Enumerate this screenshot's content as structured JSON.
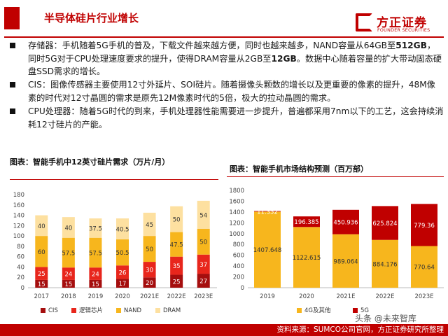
{
  "header": {
    "title": "半导体硅片行业增长",
    "logo_cn": "方正证券",
    "logo_en": "FOUNDER SECURITIES"
  },
  "bullets": [
    {
      "parts": [
        {
          "t": "存储器：手机随着5G手机的普及，下载文件越来越方便，同时也越来越多，NAND容量从64GB至"
        },
        {
          "t": "512GB",
          "b": true
        },
        {
          "t": "，同时5G对于CPU处理速度要求的提升，使得DRAM容量从2GB至"
        },
        {
          "t": "12GB",
          "b": true
        },
        {
          "t": "。数据中心随着容量的扩大带动固态硬盘SSD需求的增长。"
        }
      ]
    },
    {
      "parts": [
        {
          "t": "CIS：图像传感器主要使用12寸外延片、SOI硅片。随着摄像头颗数的增长以及更重要的像素的提升，48M像素的时代对12寸晶圆的需求是原先12M像素时代的5倍，极大的拉动晶圆的需求。"
        }
      ]
    },
    {
      "parts": [
        {
          "t": "CPU处理器：随着5G时代的到来，手机处理器性能需要进一步提升，普遍都采用7nm以下的工艺，这会持续消耗12寸硅片的产能。"
        }
      ]
    }
  ],
  "chart_data": [
    {
      "type": "bar",
      "stacked": true,
      "title": "图表：智能手机中12英寸硅片需求（万片/月）",
      "categories": [
        "2017",
        "2018",
        "2019",
        "2020",
        "2021E",
        "2022E",
        "2023E"
      ],
      "ylim": [
        0,
        180
      ],
      "yticks": [
        0,
        20,
        40,
        60,
        80,
        100,
        120,
        140,
        160,
        180
      ],
      "grid": false,
      "legend_position": "bottom",
      "series": [
        {
          "name": "CIS",
          "color": "#a50e0e",
          "values": [
            15,
            15,
            15,
            17,
            20,
            25,
            27
          ]
        },
        {
          "name": "逻辑芯片",
          "color": "#e8261c",
          "values": [
            25,
            24,
            24,
            26,
            30,
            35,
            37
          ]
        },
        {
          "name": "NAND",
          "color": "#f7b61d",
          "values": [
            60,
            57.5,
            57.5,
            50.5,
            50,
            47.5,
            50
          ]
        },
        {
          "name": "DRAM",
          "color": "#fde0a0",
          "values": [
            40,
            40,
            37.5,
            40.5,
            45,
            50,
            54
          ]
        }
      ]
    },
    {
      "type": "bar",
      "stacked": true,
      "title": "图表：智能手机市场结构预测（百万部）",
      "categories": [
        "2019",
        "2020",
        "2021E",
        "2022E",
        "2023E"
      ],
      "ylim": [
        0,
        1800
      ],
      "yticks": [
        0,
        200,
        400,
        600,
        800,
        1000,
        1200,
        1400,
        1600,
        1800
      ],
      "grid": false,
      "legend_position": "bottom",
      "series": [
        {
          "name": "4G及其他",
          "color": "#f7b61d",
          "values": [
            1407.648,
            1122.615,
            989.064,
            884.176,
            770.64
          ],
          "labels": [
            "1407.648",
            "1122.615",
            "989.064",
            "884.176",
            "770.64"
          ]
        },
        {
          "name": "5G",
          "color": "#c00000",
          "values": [
            11.352,
            196.385,
            450.936,
            625.824,
            779.36
          ],
          "labels": [
            "11.352",
            "196.385",
            "450.936",
            "625.824",
            "779.36"
          ]
        }
      ]
    }
  ],
  "footer": {
    "source": "资料来源：SUMCO公司官网，方正证券研究所整理",
    "watermark": "头条 @未来智库"
  },
  "colors": {
    "brand": "#c00000"
  }
}
